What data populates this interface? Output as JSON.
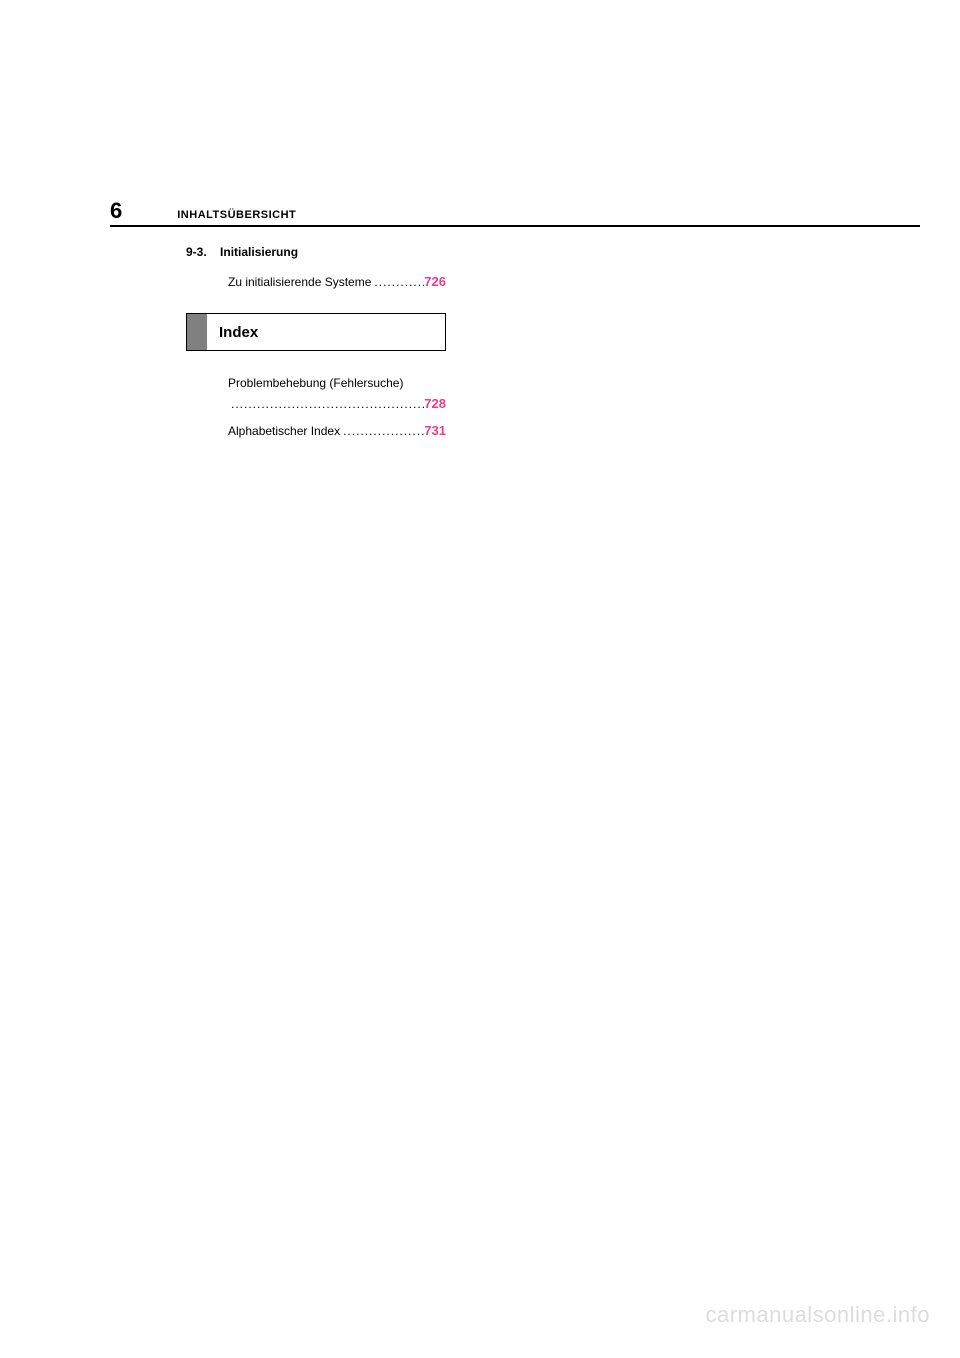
{
  "page": {
    "number": "6",
    "header_title": "INHALTSÜBERSICHT"
  },
  "section": {
    "number": "9-3.",
    "title": "Initialisierung"
  },
  "toc": {
    "entry1": {
      "label": "Zu initialisierende Systeme",
      "page": "726"
    }
  },
  "index_box": {
    "label": "Index"
  },
  "index_entries": {
    "entry1": {
      "label": "Problembehebung (Fehlersuche)",
      "page": "728"
    },
    "entry2": {
      "label": "Alphabetischer Index ",
      "page": "731"
    }
  },
  "watermark": "carmanualsonline.info",
  "colors": {
    "link": "#e83e8c",
    "tab": "#808080",
    "watermark": "#dddddd",
    "text": "#000000",
    "background": "#ffffff"
  },
  "typography": {
    "body_font": "Arial",
    "page_number_size": 22,
    "header_title_size": 11,
    "section_size": 12,
    "toc_size": 12,
    "index_label_size": 15,
    "watermark_size": 22
  }
}
